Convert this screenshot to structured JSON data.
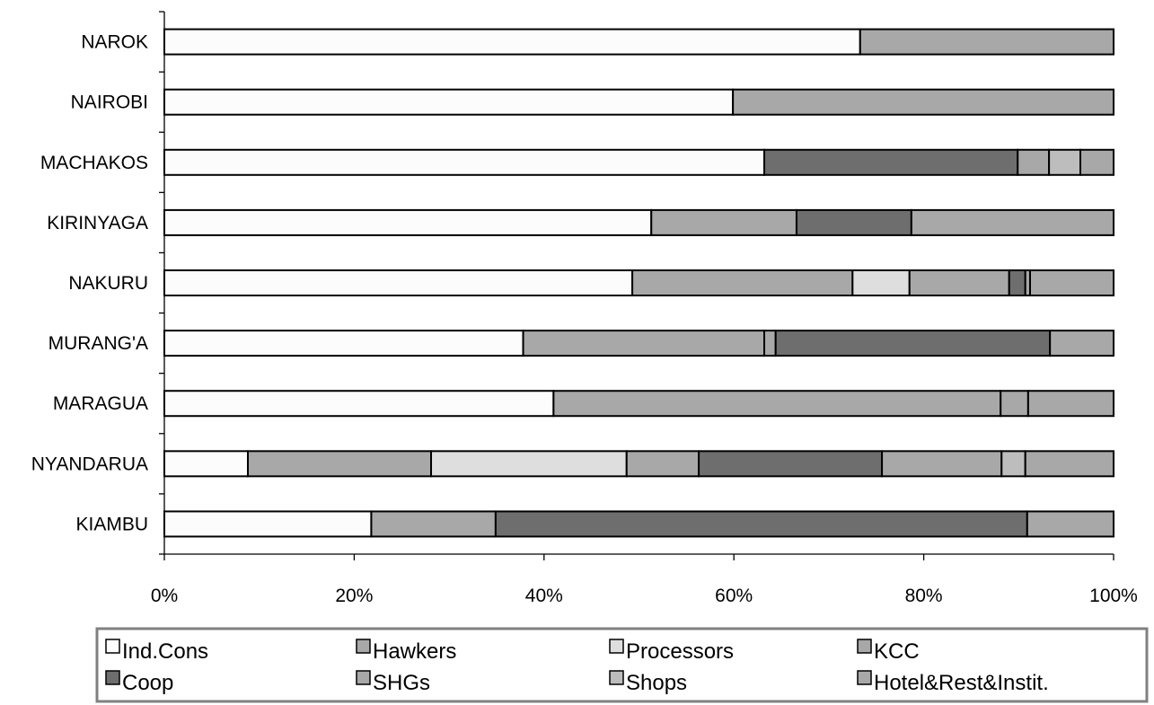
{
  "chart_data": {
    "type": "bar",
    "orientation": "horizontal",
    "stacked": "percent",
    "title": "",
    "xlabel": "",
    "ylabel": "",
    "xlim": [
      0,
      100
    ],
    "x_ticks": [
      "0%",
      "20%",
      "40%",
      "60%",
      "80%",
      "100%"
    ],
    "categories": [
      "NAROK",
      "NAIROBI",
      "MACHAKOS",
      "KIRINYAGA",
      "NAKURU",
      "MURANG'A",
      "MARAGUA",
      "NYANDARUA",
      "KIAMBU"
    ],
    "series": [
      {
        "name": "Ind.Cons",
        "color": "#fcfcfc",
        "values": [
          73.3,
          59.9,
          63.2,
          51.3,
          49.3,
          37.8,
          41.0,
          8.8,
          21.8
        ]
      },
      {
        "name": "Hawkers",
        "color": "#a8a8a8",
        "values": [
          26.7,
          40.1,
          0,
          15.3,
          23.2,
          25.4,
          47.1,
          19.3,
          13.1
        ]
      },
      {
        "name": "Processors",
        "color": "#dedede",
        "values": [
          0,
          0,
          0,
          0,
          6.0,
          0,
          0,
          20.6,
          0
        ]
      },
      {
        "name": "KCC",
        "color": "#a8a8a8",
        "values": [
          0,
          0,
          0,
          0,
          10.5,
          1.2,
          0,
          7.6,
          0
        ]
      },
      {
        "name": "Coop",
        "color": "#6e6e6e",
        "values": [
          0,
          0,
          26.7,
          12.1,
          1.7,
          28.9,
          0,
          19.3,
          56.0
        ]
      },
      {
        "name": "SHGs",
        "color": "#a8a8a8",
        "values": [
          0,
          0,
          3.3,
          0,
          0.5,
          0,
          2.9,
          12.6,
          0
        ]
      },
      {
        "name": "Shops",
        "color": "#bdbdbd",
        "values": [
          0,
          0,
          3.3,
          0,
          0,
          0,
          0,
          2.5,
          0
        ]
      },
      {
        "name": "Hotel&Rest&Instit.",
        "color": "#a8a8a8",
        "values": [
          0,
          0,
          3.5,
          21.3,
          8.8,
          6.7,
          9.0,
          9.3,
          9.1
        ]
      }
    ],
    "legend": {
      "position": "bottom",
      "columns": 4
    },
    "grid": false
  }
}
